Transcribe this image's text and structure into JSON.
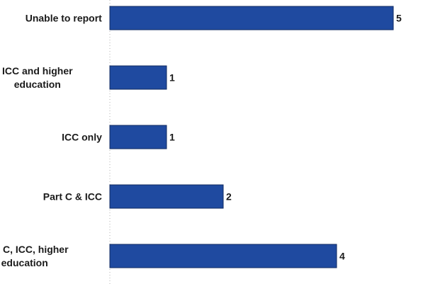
{
  "chart_data": {
    "type": "bar",
    "orientation": "horizontal",
    "categories": [
      [
        "Unable to report"
      ],
      [
        "ICC and higher",
        "education"
      ],
      [
        "ICC only"
      ],
      [
        "Part C & ICC"
      ],
      [
        "Part C, ICC, higher",
        "education"
      ]
    ],
    "values": [
      5,
      1,
      1,
      2,
      4
    ],
    "xlim": [
      0,
      5
    ],
    "grid": false,
    "legend": "none",
    "colors": {
      "bar_fill": "#1f4aa0",
      "bar_stroke": "#0f2a60",
      "axis": "#b0b0b0"
    }
  }
}
